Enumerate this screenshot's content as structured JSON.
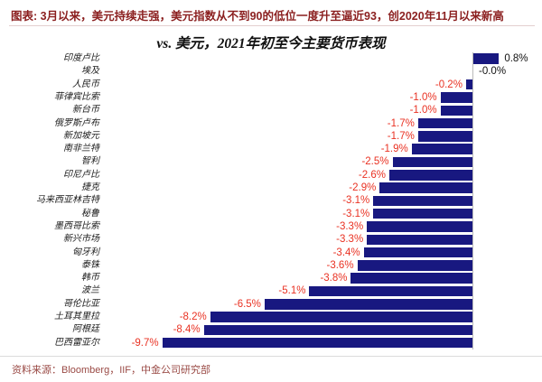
{
  "header": {
    "title": "图表: 3月以来，美元持续走强，美元指数从不到90的低位一度升至逼近93，创2020年11月以来新高"
  },
  "chart_data": {
    "type": "bar",
    "orientation": "horizontal",
    "title": "vs. 美元，2021年初至今主要货币表现",
    "categories": [
      "印度卢比",
      "埃及",
      "人民币",
      "菲律宾比索",
      "新台币",
      "俄罗斯卢布",
      "新加坡元",
      "南非兰特",
      "智利",
      "印尼卢比",
      "捷克",
      "马来西亚林吉特",
      "秘鲁",
      "墨西哥比索",
      "新兴市场",
      "匈牙利",
      "泰铢",
      "韩币",
      "波兰",
      "哥伦比亚",
      "土耳其里拉",
      "阿根廷",
      "巴西雷亚尔"
    ],
    "values": [
      0.8,
      -0.0,
      -0.2,
      -1.0,
      -1.0,
      -1.7,
      -1.7,
      -1.9,
      -2.5,
      -2.6,
      -2.9,
      -3.1,
      -3.1,
      -3.3,
      -3.3,
      -3.4,
      -3.6,
      -3.8,
      -5.1,
      -6.5,
      -8.2,
      -8.4,
      -9.7
    ],
    "value_labels": [
      "0.8%",
      "-0.0%",
      "-0.2%",
      "-1.0%",
      "-1.0%",
      "-1.7%",
      "-1.7%",
      "-1.9%",
      "-2.5%",
      "-2.6%",
      "-2.9%",
      "-3.1%",
      "-3.1%",
      "-3.3%",
      "-3.3%",
      "-3.4%",
      "-3.6%",
      "-3.8%",
      "-5.1%",
      "-6.5%",
      "-8.2%",
      "-8.4%",
      "-9.7%"
    ],
    "unit": "%",
    "xlim": [
      -9.7,
      0.8
    ],
    "grid": false,
    "legend": false,
    "colors": {
      "bar": "#181880",
      "negative_label": "#e93223",
      "positive_label": "#111111",
      "axis_line": "#b9b9b9"
    }
  },
  "footer": {
    "source": "资料来源：Bloomberg，IIF，中金公司研究部"
  }
}
